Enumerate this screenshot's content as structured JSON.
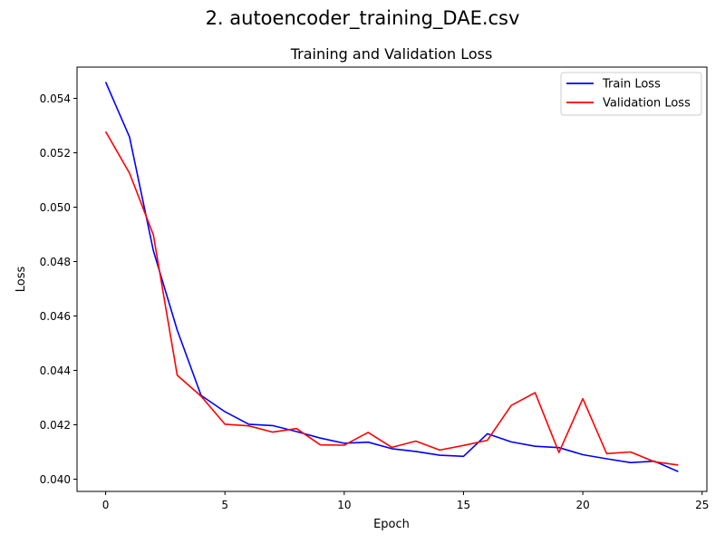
{
  "figure_title": "2. autoencoder_training_DAE.csv",
  "chart_data": {
    "type": "line",
    "title": "Training and Validation Loss",
    "xlabel": "Epoch",
    "ylabel": "Loss",
    "xlim": [
      -1.2,
      25.2
    ],
    "ylim": [
      0.03955,
      0.05515
    ],
    "xticks": [
      0,
      5,
      10,
      15,
      20,
      25
    ],
    "yticks": [
      0.04,
      0.042,
      0.044,
      0.046,
      0.048,
      0.05,
      0.052,
      0.054
    ],
    "ytick_labels": [
      "0.040",
      "0.042",
      "0.044",
      "0.046",
      "0.048",
      "0.050",
      "0.052",
      "0.054"
    ],
    "grid": false,
    "legend_position": "top-right",
    "x": [
      0,
      1,
      2,
      3,
      4,
      5,
      6,
      7,
      8,
      9,
      10,
      11,
      12,
      13,
      14,
      15,
      16,
      17,
      18,
      19,
      20,
      21,
      22,
      23,
      24
    ],
    "series": [
      {
        "name": "Train Loss",
        "color": "#0000ff",
        "values": [
          0.0546,
          0.05258,
          0.0484,
          0.04548,
          0.04308,
          0.04248,
          0.04202,
          0.04197,
          0.04175,
          0.04151,
          0.04132,
          0.04136,
          0.04112,
          0.04102,
          0.04088,
          0.04084,
          0.04167,
          0.04137,
          0.04121,
          0.04116,
          0.0409,
          0.04075,
          0.04061,
          0.04066,
          0.04028
        ]
      },
      {
        "name": "Validation Loss",
        "color": "#ff0000",
        "values": [
          0.05278,
          0.05125,
          0.04898,
          0.04382,
          0.04305,
          0.04202,
          0.04196,
          0.04173,
          0.04186,
          0.04126,
          0.04125,
          0.04172,
          0.04117,
          0.0414,
          0.04107,
          0.04124,
          0.04143,
          0.04271,
          0.04318,
          0.04098,
          0.04296,
          0.04094,
          0.041,
          0.04064,
          0.04052
        ]
      }
    ]
  }
}
